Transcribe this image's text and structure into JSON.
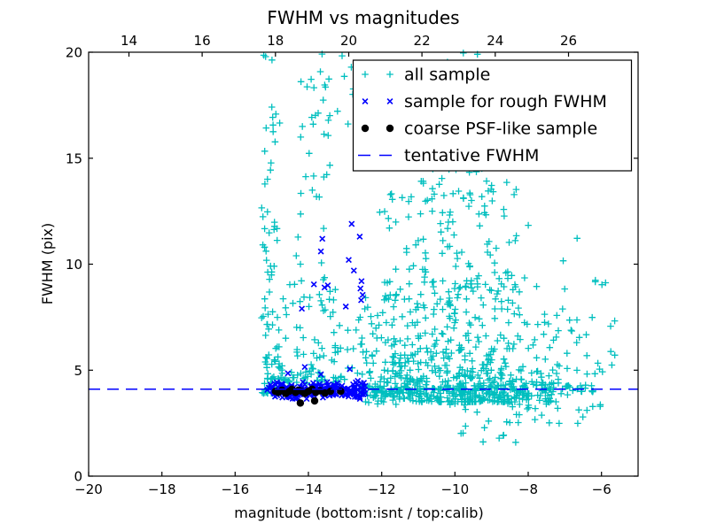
{
  "colors": {
    "cyan": "#00bfbf",
    "blue": "#0000ff",
    "black": "#000000",
    "background": "#ffffff",
    "text": "#000000"
  },
  "legend": {
    "items": [
      {
        "label": "all sample",
        "marker": "plus",
        "color_key": "cyan"
      },
      {
        "label": "sample for rough FWHM",
        "marker": "x",
        "color_key": "blue"
      },
      {
        "label": "coarse PSF-like sample",
        "marker": "dot",
        "color_key": "black"
      },
      {
        "label": "tentative FWHM",
        "marker": "dash",
        "color_key": "blue"
      }
    ]
  },
  "chart_data": {
    "type": "scatter",
    "title": "FWHM vs magnitudes",
    "xlabel": "magnitude (bottom:isnt / top:calib)",
    "ylabel": "FWHM (pix)",
    "xlim": [
      -20,
      -5
    ],
    "ylim": [
      0,
      20
    ],
    "x_ticks_bottom": [
      -20,
      -18,
      -16,
      -14,
      -12,
      -10,
      -8,
      -6
    ],
    "x_ticks_top": [
      14,
      16,
      18,
      20,
      22,
      24,
      26
    ],
    "top_axis_offset": 32.9,
    "y_ticks": [
      0,
      5,
      10,
      15,
      20
    ],
    "grid": false,
    "legend_position": "upper right",
    "tentative_fwhm": 4.1,
    "seed": 42,
    "series": [
      {
        "name": "all sample",
        "marker": "plus",
        "color_key": "cyan",
        "clusters": [
          {
            "n": 85,
            "mag": [
              -15.28,
              -14.78
            ],
            "fwhm": [
              3.9,
              20
            ],
            "fbias": "low"
          },
          {
            "n": 34,
            "mag": [
              -14.35,
              -13.4
            ],
            "fwhm": [
              9.5,
              20
            ]
          },
          {
            "n": 75,
            "mag": [
              -14.85,
              -12.55
            ],
            "fwhm": [
              4.5,
              9.6
            ],
            "fbias": "low"
          },
          {
            "n": 10,
            "mag": [
              -13.6,
              -12.55
            ],
            "fwhm": [
              16.5,
              20
            ]
          },
          {
            "n": 470,
            "mag": [
              -12.55,
              -6.9
            ],
            "fwhm": [
              3.5,
              9.2
            ],
            "fbias": "low",
            "mshape": "center"
          },
          {
            "n": 85,
            "mag": [
              -12.55,
              -11.2
            ],
            "fwhm": [
              3.9,
              8.6
            ],
            "fbias": "low"
          },
          {
            "n": 110,
            "mag": [
              -12.45,
              -7.5
            ],
            "fwhm": [
              9,
              14
            ],
            "mshape": "center"
          },
          {
            "n": 48,
            "mag": [
              -11.0,
              -8.85
            ],
            "fwhm": [
              14,
              20
            ]
          },
          {
            "n": 200,
            "mag": [
              -12.6,
              -7.35
            ],
            "fwhm": [
              3.3,
              4.8
            ],
            "fbias": "mid"
          },
          {
            "n": 20,
            "mag": [
              -7.4,
              -6.2
            ],
            "fwhm": [
              3.9,
              4.4
            ],
            "fbias": "mid"
          },
          {
            "n": 28,
            "mag": [
              -10.1,
              -6.2
            ],
            "fwhm": [
              2.4,
              3.6
            ]
          },
          {
            "n": 9,
            "mag": [
              -10.2,
              -7.4
            ],
            "fwhm": [
              1.3,
              2.4
            ]
          },
          {
            "n": 34,
            "mag": [
              -7.25,
              -5.55
            ],
            "fwhm": [
              3.0,
              7.6
            ]
          },
          {
            "n": 7,
            "mag": [
              -7.6,
              -5.8
            ],
            "fwhm": [
              7.8,
              12
            ]
          },
          {
            "n": 30,
            "mag": [
              -15.2,
              -12.9
            ],
            "fwhm": [
              4.4,
              5.1
            ],
            "fbias": "low"
          },
          {
            "n": 9,
            "mag": [
              -15.0,
              -13.1
            ],
            "fwhm": [
              5.1,
              6.2
            ]
          }
        ],
        "points": []
      },
      {
        "name": "sample for rough FWHM",
        "marker": "x",
        "color_key": "blue",
        "clusters": [
          {
            "n": 200,
            "mag": [
              -15.15,
              -12.42
            ],
            "fwhm": [
              3.6,
              4.5
            ],
            "fbias": "mid"
          }
        ],
        "points": [
          [
            -12.82,
            11.9
          ],
          [
            -12.6,
            11.3
          ],
          [
            -13.62,
            11.2
          ],
          [
            -13.66,
            10.6
          ],
          [
            -12.9,
            10.2
          ],
          [
            -12.76,
            9.7
          ],
          [
            -12.55,
            9.2
          ],
          [
            -12.58,
            8.85
          ],
          [
            -12.52,
            8.55
          ],
          [
            -12.56,
            8.3
          ],
          [
            -13.85,
            9.05
          ],
          [
            -13.56,
            8.9
          ],
          [
            -13.47,
            9.0
          ],
          [
            -14.18,
            7.9
          ],
          [
            -12.98,
            8.0
          ],
          [
            -14.56,
            4.85
          ],
          [
            -14.1,
            5.15
          ],
          [
            -13.66,
            4.8
          ],
          [
            -12.87,
            5.05
          ]
        ]
      },
      {
        "name": "coarse PSF-like sample",
        "marker": "dot",
        "color_key": "black",
        "clusters": [],
        "points": [
          [
            -14.9,
            4.0
          ],
          [
            -14.82,
            3.95
          ],
          [
            -14.72,
            4.05
          ],
          [
            -14.62,
            3.9
          ],
          [
            -14.52,
            4.0
          ],
          [
            -14.45,
            4.1
          ],
          [
            -14.35,
            3.95
          ],
          [
            -14.27,
            4.05
          ],
          [
            -14.18,
            4.0
          ],
          [
            -14.1,
            3.9
          ],
          [
            -14.0,
            4.0
          ],
          [
            -13.9,
            4.1
          ],
          [
            -13.8,
            3.95
          ],
          [
            -13.68,
            4.02
          ],
          [
            -13.55,
            3.92
          ],
          [
            -13.4,
            4.0
          ],
          [
            -13.12,
            4.0
          ],
          [
            -14.22,
            3.45
          ],
          [
            -13.83,
            3.55
          ]
        ]
      },
      {
        "name": "tentative FWHM",
        "type": "hline",
        "y": 4.1,
        "color_key": "blue",
        "dash": [
          13,
          8
        ]
      }
    ]
  }
}
